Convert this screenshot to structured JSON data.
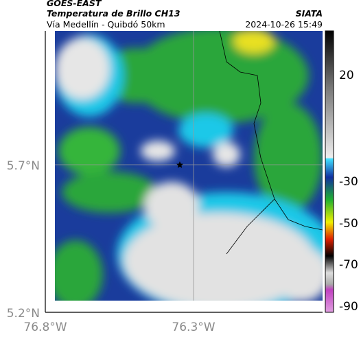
{
  "header": {
    "source": "GOES-EAST",
    "product": "Temperatura de Brillo CH13",
    "agency": "SIATA",
    "route": "Vía Medellín - Quibdó 50km",
    "timestamp": "2024-10-26 15:49"
  },
  "map": {
    "lat_labels": [
      "5.7°N",
      "5.2°N"
    ],
    "lon_labels": [
      "76.8°W",
      "76.3°W"
    ]
  },
  "colorbar": {
    "ticks": [
      20,
      -30,
      -50,
      -70,
      -90
    ]
  }
}
